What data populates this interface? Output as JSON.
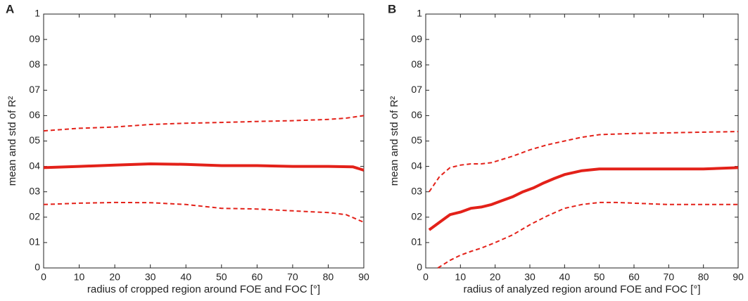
{
  "chart_data": [
    {
      "type": "line",
      "label": "A",
      "xlabel": "radius of cropped region around FOE and FOC [°]",
      "ylabel": "mean and std of R²",
      "xlim": [
        0,
        90
      ],
      "ylim": [
        0,
        1
      ],
      "xticks": [
        0,
        10,
        20,
        30,
        40,
        50,
        60,
        70,
        80,
        90
      ],
      "yticks": [
        0,
        {
          "value": 0.1,
          "label": "01"
        },
        {
          "value": 0.2,
          "label": "02"
        },
        {
          "value": 0.3,
          "label": "03"
        },
        {
          "value": 0.4,
          "label": "04"
        },
        {
          "value": 0.5,
          "label": "05"
        },
        {
          "value": 0.6,
          "label": "06"
        },
        {
          "value": 0.7,
          "label": "07"
        },
        {
          "value": 0.8,
          "label": "08"
        },
        {
          "value": 0.9,
          "label": "09"
        },
        1
      ],
      "series": [
        {
          "color": "#e32119",
          "dashed": false,
          "x": [
            0,
            10,
            20,
            30,
            40,
            50,
            60,
            70,
            80,
            87,
            90
          ],
          "values": [
            0.395,
            0.4,
            0.405,
            0.41,
            0.408,
            0.403,
            0.403,
            0.4,
            0.4,
            0.398,
            0.385
          ]
        },
        {
          "color": "#e32119",
          "dashed": true,
          "x": [
            0,
            10,
            20,
            30,
            40,
            50,
            60,
            70,
            80,
            85,
            90
          ],
          "values": [
            0.54,
            0.55,
            0.555,
            0.565,
            0.57,
            0.573,
            0.577,
            0.58,
            0.585,
            0.59,
            0.6
          ]
        },
        {
          "color": "#e32119",
          "dashed": true,
          "x": [
            0,
            10,
            20,
            30,
            40,
            50,
            60,
            70,
            80,
            85,
            90
          ],
          "values": [
            0.25,
            0.255,
            0.258,
            0.257,
            0.25,
            0.235,
            0.232,
            0.225,
            0.218,
            0.21,
            0.18
          ]
        }
      ]
    },
    {
      "type": "line",
      "label": "B",
      "xlabel": "radius of analyzed region around FOE and FOC [°]",
      "ylabel": "mean and std of R²",
      "xlim": [
        0,
        90
      ],
      "ylim": [
        0,
        1
      ],
      "xticks": [
        0,
        10,
        20,
        30,
        40,
        50,
        60,
        70,
        80,
        90
      ],
      "yticks": [
        0,
        {
          "value": 0.1,
          "label": "01"
        },
        {
          "value": 0.2,
          "label": "02"
        },
        {
          "value": 0.3,
          "label": "03"
        },
        {
          "value": 0.4,
          "label": "04"
        },
        {
          "value": 0.5,
          "label": "05"
        },
        {
          "value": 0.6,
          "label": "06"
        },
        {
          "value": 0.7,
          "label": "07"
        },
        {
          "value": 0.8,
          "label": "08"
        },
        {
          "value": 0.9,
          "label": "09"
        },
        1
      ],
      "series": [
        {
          "color": "#e32119",
          "dashed": false,
          "x": [
            1,
            4,
            7,
            10,
            13,
            16,
            19,
            22,
            25,
            28,
            31,
            34,
            37,
            40,
            45,
            50,
            60,
            70,
            80,
            90
          ],
          "values": [
            0.15,
            0.18,
            0.21,
            0.22,
            0.235,
            0.24,
            0.25,
            0.265,
            0.28,
            0.3,
            0.315,
            0.335,
            0.352,
            0.368,
            0.383,
            0.39,
            0.39,
            0.39,
            0.39,
            0.395
          ]
        },
        {
          "color": "#e32119",
          "dashed": true,
          "x": [
            1,
            4,
            7,
            10,
            13,
            16,
            19,
            25,
            30,
            35,
            40,
            45,
            50,
            60,
            70,
            80,
            90
          ],
          "values": [
            0.3,
            0.36,
            0.395,
            0.405,
            0.41,
            0.41,
            0.415,
            0.44,
            0.465,
            0.485,
            0.5,
            0.515,
            0.525,
            0.53,
            0.532,
            0.535,
            0.537
          ]
        },
        {
          "color": "#e32119",
          "dashed": true,
          "x": [
            3.5,
            7,
            10,
            13,
            16,
            20,
            25,
            30,
            35,
            40,
            45,
            50,
            55,
            60,
            70,
            80,
            90
          ],
          "values": [
            0,
            0.03,
            0.05,
            0.065,
            0.078,
            0.1,
            0.13,
            0.17,
            0.205,
            0.235,
            0.25,
            0.258,
            0.258,
            0.255,
            0.25,
            0.25,
            0.25
          ]
        }
      ]
    }
  ]
}
